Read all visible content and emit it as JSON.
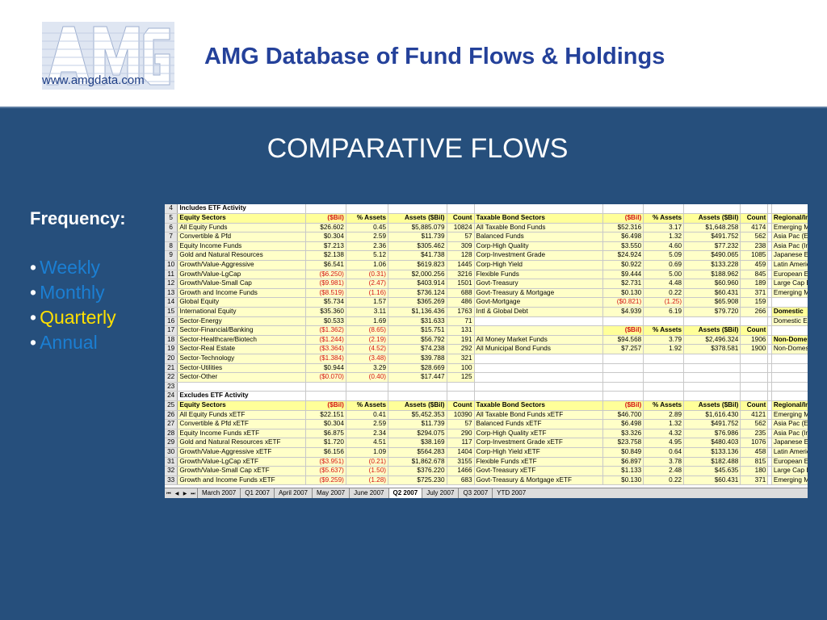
{
  "header": {
    "logo_url_text": "www.amgdata.com",
    "title": "AMG Database of Fund Flows & Holdings"
  },
  "slide": {
    "subtitle": "COMPARATIVE FLOWS",
    "frequency_label": "Frequency:",
    "frequency_options": [
      {
        "label": "Weekly",
        "selected": false
      },
      {
        "label": "Monthly",
        "selected": false
      },
      {
        "label": "Quarterly",
        "selected": true
      },
      {
        "label": "Annual",
        "selected": false
      }
    ]
  },
  "colors": {
    "header_bg": "#ffffff",
    "slide_bg": "#264f7c",
    "title": "#24419a",
    "option": "#1b7fd3",
    "selected_option": "#ffe000",
    "negative": "#d41414",
    "header_cell": "#ffff99"
  },
  "spreadsheet": {
    "rows": [
      {
        "n": "4",
        "kind": "section",
        "left": [
          "Includes ETF Activity",
          "",
          "",
          "",
          ""
        ],
        "right": [
          "",
          "",
          "",
          "",
          ""
        ],
        "region": ""
      },
      {
        "n": "5",
        "kind": "header",
        "left": [
          "Equity Sectors",
          "($Bil)",
          "% Assets",
          "Assets ($Bil)",
          "Count"
        ],
        "right": [
          "Taxable Bond Sectors",
          "($Bil)",
          "% Assets",
          "Assets ($Bil)",
          "Count"
        ],
        "region": "Regional/Ind"
      },
      {
        "n": "6",
        "kind": "data",
        "left": [
          "All Equity Funds",
          "$26.602",
          "0.45",
          "$5,885.079",
          "10824"
        ],
        "right": [
          "All Taxable Bond Funds",
          "$52.316",
          "3.17",
          "$1,648.258",
          "4174"
        ],
        "region": "Emerging Mkt"
      },
      {
        "n": "7",
        "kind": "data",
        "left": [
          "Convertible & Pfd",
          "$0.304",
          "2.59",
          "$11.739",
          "57"
        ],
        "right": [
          "Balanced Funds",
          "$6.498",
          "1.32",
          "$491.752",
          "562"
        ],
        "region": "Asia Pac (Ex-"
      },
      {
        "n": "8",
        "kind": "data",
        "left": [
          "Equity Income Funds",
          "$7.213",
          "2.36",
          "$305.462",
          "309"
        ],
        "right": [
          "Corp-High Quality",
          "$3.550",
          "4.60",
          "$77.232",
          "238"
        ],
        "region": "Asia Pac (Incl"
      },
      {
        "n": "9",
        "kind": "data",
        "left": [
          "Gold and Natural Resources",
          "$2.138",
          "5.12",
          "$41.738",
          "128"
        ],
        "right": [
          "Corp-Investment Grade",
          "$24.924",
          "5.09",
          "$490.065",
          "1085"
        ],
        "region": "Japanese Eq"
      },
      {
        "n": "10",
        "kind": "data",
        "left": [
          "Growth/Value-Aggressive",
          "$6.541",
          "1.06",
          "$619.823",
          "1445"
        ],
        "right": [
          "Corp-High Yield",
          "$0.922",
          "0.69",
          "$133.228",
          "459"
        ],
        "region": "Latin America"
      },
      {
        "n": "11",
        "kind": "data",
        "left": [
          "Growth/Value-LgCap",
          "($6.250)",
          "(0.31)",
          "$2,000.256",
          "3216"
        ],
        "right": [
          "Flexible Funds",
          "$9.444",
          "5.00",
          "$188.962",
          "845"
        ],
        "region": "European Eq"
      },
      {
        "n": "12",
        "kind": "data",
        "left": [
          "Growth/Value-Small Cap",
          "($9.981)",
          "(2.47)",
          "$403.914",
          "1501"
        ],
        "right": [
          "Govt-Treasury",
          "$2.731",
          "4.48",
          "$60.960",
          "189"
        ],
        "region": "Large Cap Eq"
      },
      {
        "n": "13",
        "kind": "data",
        "left": [
          "Growth and Income Funds",
          "($8.519)",
          "(1.16)",
          "$736.124",
          "688"
        ],
        "right": [
          "Govt-Treasury & Mortgage",
          "$0.130",
          "0.22",
          "$60.431",
          "371"
        ],
        "region": "Emerging Mkt"
      },
      {
        "n": "14",
        "kind": "data",
        "left": [
          "Global Equity",
          "$5.734",
          "1.57",
          "$365.269",
          "486"
        ],
        "right": [
          "Govt-Mortgage",
          "($0.821)",
          "(1.25)",
          "$65.908",
          "159"
        ],
        "region": ""
      },
      {
        "n": "15",
        "kind": "data",
        "left": [
          "International Equity",
          "$35.360",
          "3.11",
          "$1,136.436",
          "1763"
        ],
        "right": [
          "Intl & Global Debt",
          "$4.939",
          "6.19",
          "$79.720",
          "266"
        ],
        "region": "Domestic"
      },
      {
        "n": "16",
        "kind": "data",
        "left": [
          "Sector-Energy",
          "$0.533",
          "1.69",
          "$31.633",
          "71"
        ],
        "right": [
          "",
          "",
          "",
          "",
          ""
        ],
        "region": "Domestic Equ"
      },
      {
        "n": "17",
        "kind": "data",
        "left": [
          "Sector-Financial/Banking",
          "($1.362)",
          "(8.65)",
          "$15.751",
          "131"
        ],
        "right": [
          "",
          "($Bil)",
          "% Assets",
          "Assets ($Bil)",
          "Count"
        ],
        "region": ""
      },
      {
        "n": "18",
        "kind": "data",
        "left": [
          "Sector-Healthcare/Biotech",
          "($1.244)",
          "(2.19)",
          "$56.792",
          "191"
        ],
        "right": [
          "All Money Market Funds",
          "$94.568",
          "3.79",
          "$2,496.324",
          "1906"
        ],
        "region": "Non-Domesti"
      },
      {
        "n": "19",
        "kind": "data",
        "left": [
          "Sector-Real Estate",
          "($3.364)",
          "(4.52)",
          "$74.238",
          "292"
        ],
        "right": [
          "All Municipal Bond Funds",
          "$7.257",
          "1.92",
          "$378.581",
          "1900"
        ],
        "region": "Non-Domestic"
      },
      {
        "n": "20",
        "kind": "data",
        "left": [
          "Sector-Technology",
          "($1.384)",
          "(3.48)",
          "$39.788",
          "321"
        ],
        "right": [
          "",
          "",
          "",
          "",
          ""
        ],
        "region": ""
      },
      {
        "n": "21",
        "kind": "data",
        "left": [
          "Sector-Utilities",
          "$0.944",
          "3.29",
          "$28.669",
          "100"
        ],
        "right": [
          "",
          "",
          "",
          "",
          ""
        ],
        "region": ""
      },
      {
        "n": "22",
        "kind": "data",
        "left": [
          "Sector-Other",
          "($0.070)",
          "(0.40)",
          "$17.447",
          "125"
        ],
        "right": [
          "",
          "",
          "",
          "",
          ""
        ],
        "region": ""
      },
      {
        "n": "23",
        "kind": "empty",
        "left": [
          "",
          "",
          "",
          "",
          ""
        ],
        "right": [
          "",
          "",
          "",
          "",
          ""
        ],
        "region": ""
      },
      {
        "n": "24",
        "kind": "section",
        "left": [
          "Excludes ETF Activity",
          "",
          "",
          "",
          ""
        ],
        "right": [
          "",
          "",
          "",
          "",
          ""
        ],
        "region": ""
      },
      {
        "n": "25",
        "kind": "header",
        "left": [
          "Equity Sectors",
          "($Bil)",
          "% Assets",
          "Assets ($Bil)",
          "Count"
        ],
        "right": [
          "Taxable Bond Sectors",
          "($Bil)",
          "% Assets",
          "Assets ($Bil)",
          "Count"
        ],
        "region": "Regional/Ind"
      },
      {
        "n": "26",
        "kind": "data",
        "left": [
          "All Equity Funds xETF",
          "$22.151",
          "0.41",
          "$5,452.353",
          "10390"
        ],
        "right": [
          "All Taxable Bond Funds xETF",
          "$46.700",
          "2.89",
          "$1,616.430",
          "4121"
        ],
        "region": "Emerging Mkt"
      },
      {
        "n": "27",
        "kind": "data",
        "left": [
          "Convertible & Pfd xETF",
          "$0.304",
          "2.59",
          "$11.739",
          "57"
        ],
        "right": [
          "Balanced Funds xETF",
          "$6.498",
          "1.32",
          "$491.752",
          "562"
        ],
        "region": "Asia Pac (Ex-"
      },
      {
        "n": "28",
        "kind": "data",
        "left": [
          "Equity Income Funds xETF",
          "$6.875",
          "2.34",
          "$294.075",
          "290"
        ],
        "right": [
          "Corp-High Quality xETF",
          "$3.326",
          "4.32",
          "$76.986",
          "235"
        ],
        "region": "Asia Pac (Incl"
      },
      {
        "n": "29",
        "kind": "data",
        "left": [
          "Gold and Natural Resources xETF",
          "$1.720",
          "4.51",
          "$38.169",
          "117"
        ],
        "right": [
          "Corp-Investment Grade xETF",
          "$23.758",
          "4.95",
          "$480.403",
          "1076"
        ],
        "region": "Japanese Eq :"
      },
      {
        "n": "30",
        "kind": "data",
        "left": [
          "Growth/Value-Aggressive xETF",
          "$6.156",
          "1.09",
          "$564.283",
          "1404"
        ],
        "right": [
          "Corp-High Yield xETF",
          "$0.849",
          "0.64",
          "$133.136",
          "458"
        ],
        "region": "Latin America"
      },
      {
        "n": "31",
        "kind": "data",
        "left": [
          "Growth/Value-LgCap xETF",
          "($3.951)",
          "(0.21)",
          "$1,862.678",
          "3155"
        ],
        "right": [
          "Flexible Funds xETF",
          "$6.897",
          "3.78",
          "$182.488",
          "815"
        ],
        "region": "European Eq :"
      },
      {
        "n": "32",
        "kind": "data",
        "left": [
          "Growth/Value-Small Cap xETF",
          "($5.637)",
          "(1.50)",
          "$376.220",
          "1466"
        ],
        "right": [
          "Govt-Treasury xETF",
          "$1.133",
          "2.48",
          "$45.635",
          "180"
        ],
        "region": "Large Cap Eq"
      },
      {
        "n": "33",
        "kind": "data",
        "left": [
          "Growth and Income Funds xETF",
          "($9.259)",
          "(1.28)",
          "$725.230",
          "683"
        ],
        "right": [
          "Govt-Treasury & Mortgage xETF",
          "$0.130",
          "0.22",
          "$60.431",
          "371"
        ],
        "region": "Emerging Mkt"
      }
    ],
    "header_regions": [
      "Domestic",
      "Non-Domesti"
    ],
    "tabs": [
      "March 2007",
      "Q1 2007",
      "April 2007",
      "May 2007",
      "June 2007",
      "Q2 2007",
      "July 2007",
      "Q3 2007",
      "YTD 2007"
    ],
    "active_tab": "Q2 2007"
  }
}
